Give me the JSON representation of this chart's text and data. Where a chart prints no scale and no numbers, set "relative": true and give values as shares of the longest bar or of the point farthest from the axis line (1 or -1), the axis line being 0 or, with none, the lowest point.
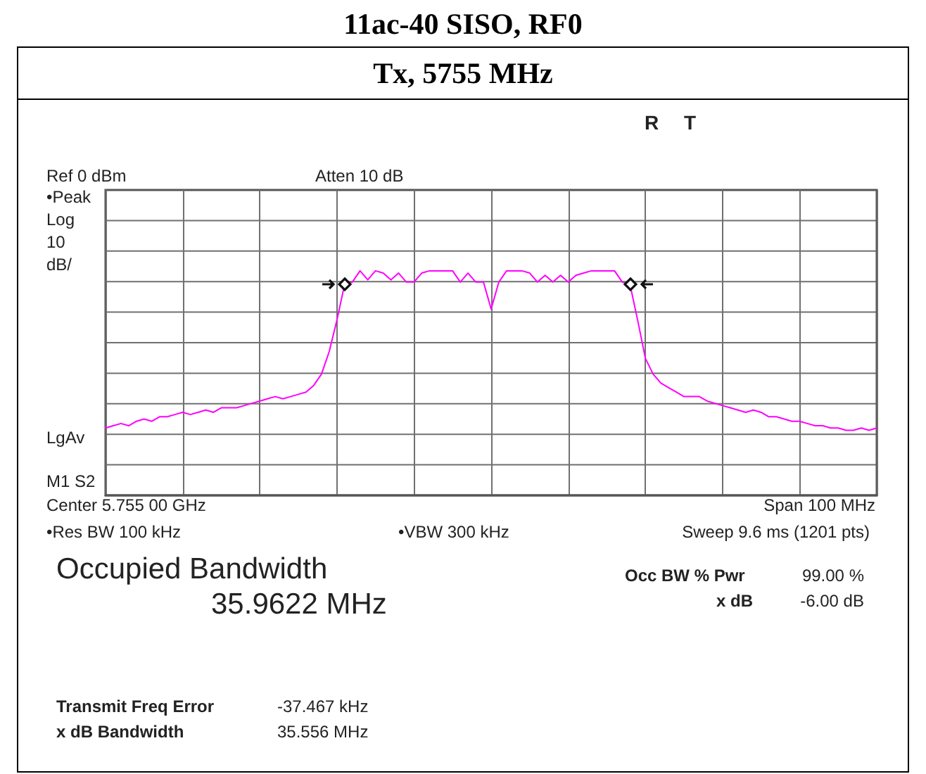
{
  "chart_data": {
    "type": "line",
    "title": "11ac-40 SISO, RF0",
    "subtitle": "Tx, 5755 MHz",
    "annotations": [
      "R T",
      "Ref 0 dBm",
      "Atten 10 dB",
      "•Peak",
      "Log",
      "10",
      "dB/",
      "LgAv",
      "M1 S2",
      "Center 5.755 00 GHz",
      "Span 100 MHz",
      "•Res BW 100 kHz",
      "•VBW 300 kHz",
      "Sweep 9.6 ms (1201 pts)",
      "Occupied Bandwidth",
      "35.9622 MHz",
      "Occ BW % Pwr",
      "99.00 %",
      "x dB",
      "-6.00 dB",
      "Transmit Freq Error",
      "-37.467 kHz",
      "x dB Bandwidth",
      "35.556 MHz"
    ],
    "relative": true,
    "grid": true,
    "categories": [
      null,
      null,
      null,
      null,
      null,
      null,
      null,
      null,
      null,
      null,
      null,
      null,
      null,
      null,
      null,
      null,
      null,
      null,
      null,
      null,
      null,
      null,
      null,
      null,
      null,
      null,
      null,
      null,
      null,
      null,
      null,
      null,
      null,
      null,
      null,
      null,
      null,
      null,
      null,
      null,
      null,
      null,
      null,
      null,
      null,
      null,
      null,
      null,
      null,
      null,
      null,
      null,
      null,
      null,
      null,
      null,
      null,
      null,
      null,
      null,
      null,
      null,
      null,
      null,
      null,
      null,
      null,
      null,
      null,
      null,
      null,
      null,
      null,
      null,
      null,
      null,
      null,
      null,
      null,
      null,
      null,
      null,
      null,
      null,
      null,
      null,
      null,
      null,
      null,
      null,
      null,
      null,
      null,
      null,
      null,
      null,
      null,
      null,
      null,
      null,
      null
    ],
    "series": [
      {
        "color": "#ff00ff",
        "marker": "none",
        "line_style": "solid",
        "values": [
          0.3,
          0.31,
          0.32,
          0.31,
          0.33,
          0.34,
          0.33,
          0.35,
          0.35,
          0.36,
          0.37,
          0.36,
          0.37,
          0.38,
          0.37,
          0.39,
          0.39,
          0.39,
          0.4,
          0.41,
          0.42,
          0.43,
          0.44,
          0.43,
          0.44,
          0.45,
          0.46,
          0.49,
          0.54,
          0.64,
          0.78,
          0.94,
          0.95,
          1,
          0.96,
          1,
          0.99,
          0.96,
          0.99,
          0.95,
          0.95,
          0.99,
          1,
          1,
          1,
          1,
          0.95,
          0.99,
          0.95,
          0.95,
          0.83,
          0.95,
          1,
          1,
          1,
          0.99,
          0.95,
          0.98,
          0.95,
          0.98,
          0.95,
          0.98,
          0.99,
          1,
          1,
          1,
          1,
          0.95,
          0.94,
          0.78,
          0.61,
          0.54,
          0.5,
          0.48,
          0.46,
          0.44,
          0.44,
          0.44,
          0.42,
          0.41,
          0.4,
          0.39,
          0.38,
          0.37,
          0.38,
          0.37,
          0.35,
          0.35,
          0.34,
          0.33,
          0.33,
          0.32,
          0.31,
          0.31,
          0.3,
          0.3,
          0.29,
          0.29,
          0.3,
          0.29,
          0.3
        ]
      }
    ]
  }
}
